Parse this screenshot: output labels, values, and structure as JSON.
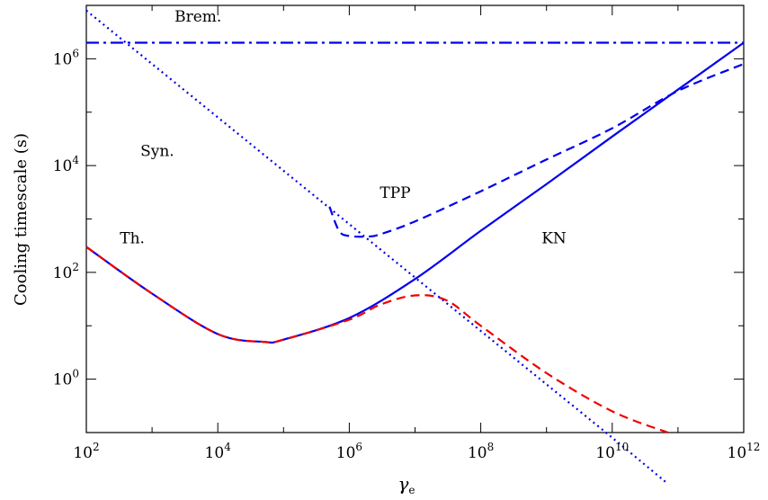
{
  "chart_data": {
    "type": "line",
    "title": "",
    "xlabel": "γ",
    "xlabel_sub": "e",
    "ylabel": "Cooling timescale (s)",
    "x_scale": "log",
    "y_scale": "log",
    "xlim": [
      100,
      1000000000000.0
    ],
    "ylim": [
      0.1,
      10000000.0
    ],
    "grid": false,
    "x_ticks": [
      {
        "value": 100,
        "base": "10",
        "exp": "2"
      },
      {
        "value": 10000,
        "base": "10",
        "exp": "4"
      },
      {
        "value": 1000000,
        "base": "10",
        "exp": "6"
      },
      {
        "value": 100000000,
        "base": "10",
        "exp": "8"
      },
      {
        "value": 10000000000,
        "base": "10",
        "exp": "10"
      },
      {
        "value": 1000000000000,
        "base": "10",
        "exp": "12"
      }
    ],
    "y_ticks": [
      {
        "value": 1,
        "base": "10",
        "exp": "0"
      },
      {
        "value": 100,
        "base": "10",
        "exp": "2"
      },
      {
        "value": 10000,
        "base": "10",
        "exp": "4"
      },
      {
        "value": 1000000,
        "base": "10",
        "exp": "6"
      }
    ],
    "annotations": [
      {
        "text": "Brem.",
        "x": 5000,
        "y": 5000000
      },
      {
        "text": "Syn.",
        "x": 1200,
        "y": 15000
      },
      {
        "text": "TPP",
        "x": 5000000,
        "y": 2500
      },
      {
        "text": "Th.",
        "x": 500,
        "y": 350
      },
      {
        "text": "KN",
        "x": 1300000000,
        "y": 350
      }
    ],
    "series": [
      {
        "name": "",
        "key": "total",
        "color": "#0000ee",
        "dash": "none",
        "x": [
          100,
          1000,
          10000,
          50000,
          100000,
          1000000,
          10000000,
          100000000,
          1000000000,
          10000000000,
          1000000000000
        ],
        "y": [
          300,
          40,
          7,
          5,
          5.5,
          14,
          75,
          600,
          4500,
          35000,
          2000000
        ]
      },
      {
        "name": "",
        "key": "thomson_kn",
        "color": "#ee0000",
        "dash": "10 6",
        "x": [
          100,
          1000,
          10000,
          50000,
          100000,
          1000000,
          3000000,
          10000000,
          30000000,
          100000000,
          1000000000,
          10000000000,
          70000000000
        ],
        "y": [
          300,
          40,
          7,
          5,
          5.5,
          13,
          25,
          37,
          30,
          10,
          1.3,
          0.25,
          0.1
        ]
      },
      {
        "name": "",
        "key": "synchrotron",
        "color": "#0000ee",
        "dash": "2 4",
        "x": [
          100,
          1000000,
          10000000,
          100000000,
          1000000000,
          10000000000,
          70000000000
        ],
        "y": [
          8000000,
          800,
          80,
          8,
          0.8,
          0.08,
          0.011
        ]
      },
      {
        "name": "",
        "key": "tpp",
        "color": "#0000ee",
        "dash": "10 6",
        "x": [
          500000,
          700000,
          1000000,
          2000000,
          3000000,
          10000000,
          100000000,
          1000000000,
          10000000000,
          100000000000,
          1000000000000
        ],
        "y": [
          1700,
          600,
          480,
          470,
          520,
          900,
          3300,
          13000,
          50000,
          250000,
          800000
        ]
      },
      {
        "name": "",
        "key": "bremsstrahlung",
        "color": "#0000ee",
        "dash": "14 5 3 5",
        "x": [
          100,
          1000000000000
        ],
        "y": [
          2000000,
          2000000
        ]
      }
    ]
  }
}
